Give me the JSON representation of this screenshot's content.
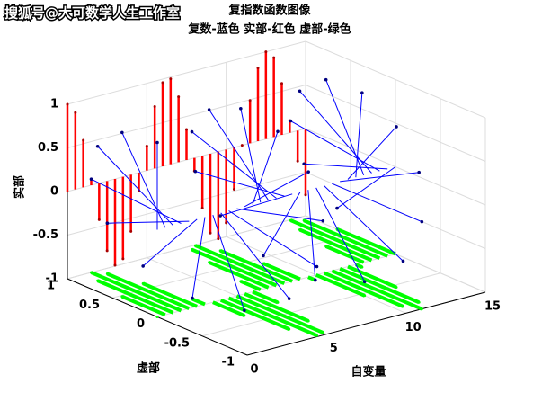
{
  "watermark": "搜狐号@大可数学人生工作室",
  "chart_data": {
    "type": "stem3",
    "title": "复指数函数图像",
    "subtitle": "复数-蓝色 实部-红色 虚部-绿色",
    "xlabel": "自变量",
    "ylabel": "虚部",
    "zlabel": "实部",
    "x": [
      0,
      0.5,
      1,
      1.5,
      2,
      2.5,
      3,
      3.5,
      4,
      4.5,
      5,
      5.5,
      6,
      6.5,
      7,
      7.5,
      8,
      8.5,
      9,
      9.5,
      10,
      10.5,
      11,
      11.5,
      12,
      12.5,
      13,
      13.5,
      14,
      14.5,
      15
    ],
    "real": [
      1,
      0.88,
      0.54,
      0.07,
      -0.42,
      -0.8,
      -0.99,
      -0.94,
      -0.65,
      -0.21,
      0.28,
      0.71,
      0.96,
      0.98,
      0.75,
      0.35,
      -0.15,
      -0.6,
      -0.91,
      -1,
      -0.84,
      -0.48,
      0,
      0.49,
      0.84,
      1,
      0.91,
      0.59,
      0.14,
      -0.35,
      -0.76
    ],
    "imag": [
      0,
      0.48,
      0.84,
      1,
      0.91,
      0.6,
      0.14,
      -0.35,
      -0.76,
      -0.98,
      -0.96,
      -0.71,
      -0.28,
      0.22,
      0.66,
      0.94,
      0.99,
      0.8,
      0.41,
      -0.08,
      -0.54,
      -0.88,
      -1,
      -0.88,
      -0.54,
      -0.07,
      0.42,
      0.8,
      0.99,
      0.93,
      0.65
    ],
    "colors": {
      "complex": "#0000ff",
      "real": "#ff0000",
      "imag": "#00ff00"
    },
    "xlim": [
      0,
      15
    ],
    "ylim": [
      -1,
      1
    ],
    "zlim": [
      -1,
      1
    ],
    "xticks": [
      0,
      5,
      10,
      15
    ],
    "yticks": [
      -1,
      -0.5,
      0,
      0.5,
      1
    ],
    "zticks": [
      -1,
      -0.5,
      0,
      0.5,
      1
    ],
    "grid": true
  }
}
